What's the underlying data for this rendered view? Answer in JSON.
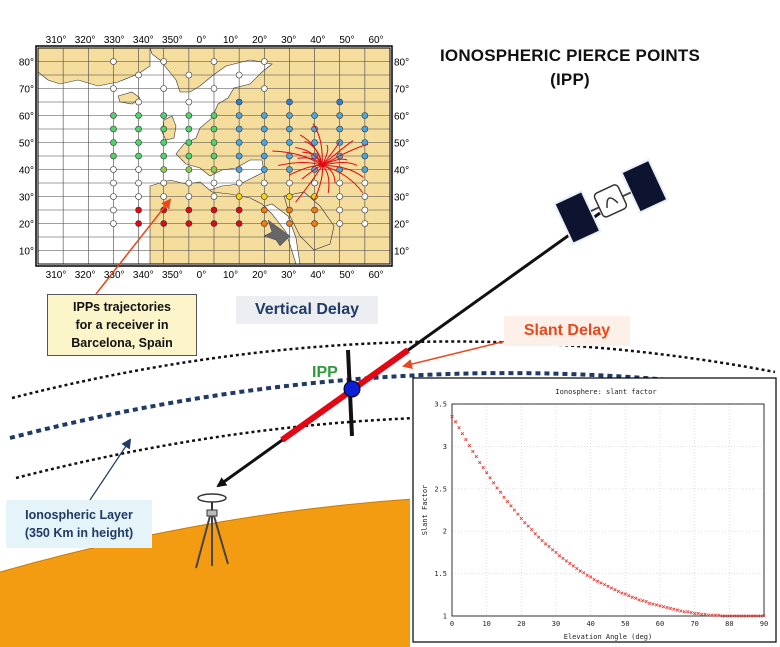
{
  "title": {
    "line1": "IONOSPHERIC PIERCE POINTS",
    "line2": "(IPP)"
  },
  "labels": {
    "vertical_delay": "Vertical Delay",
    "slant_delay": "Slant Delay",
    "ipp": "IPP",
    "ipps_callout": [
      "IPPs trajectories",
      "for a receiver in",
      "Barcelona, Spain"
    ],
    "ionospheric_layer": [
      "Ionospheric Layer",
      "(350 Km in height)"
    ]
  },
  "map": {
    "top_ticks": [
      "310°",
      "320°",
      "330°",
      "340°",
      "350°",
      "0°",
      "10°",
      "20°",
      "30°",
      "40°",
      "50°",
      "60°"
    ],
    "bottom_ticks": [
      "310°",
      "320°",
      "330°",
      "340°",
      "350°",
      "0°",
      "10°",
      "20°",
      "30°",
      "40°",
      "50°",
      "60°"
    ],
    "lat_ticks": [
      "80°",
      "70°",
      "60°",
      "50°",
      "40°",
      "30°",
      "20°",
      "10°"
    ]
  },
  "colors": {
    "ipp_red": "#e30613",
    "slant_orange": "#e8481b",
    "vertical_blue": "#1f3a66",
    "ipp_green": "#2e9b3a",
    "land": "#f5dd9e",
    "earth": "#f39c12",
    "plot_marker": "#e3342f"
  },
  "chart_data": {
    "type": "scatter",
    "title": "Ionosphere: slant factor",
    "xlabel": "Elevation Angle (deg)",
    "ylabel": "Slant Factor",
    "xlim": [
      0,
      90
    ],
    "ylim": [
      1,
      3.5
    ],
    "xticks": [
      "0",
      "10",
      "20",
      "30",
      "40",
      "50",
      "60",
      "70",
      "80",
      "90"
    ],
    "yticks": [
      "1",
      "1.5",
      "2",
      "2.5",
      "3",
      "3.5"
    ],
    "grid": true,
    "series": [
      {
        "x": [
          0,
          1,
          2,
          3,
          4,
          5,
          6,
          7,
          8,
          9,
          10,
          11,
          12,
          13,
          14,
          15,
          16,
          17,
          18,
          19,
          20,
          21,
          22,
          23,
          24,
          25,
          26,
          27,
          28,
          29,
          30,
          31,
          32,
          33,
          34,
          35,
          36,
          37,
          38,
          39,
          40,
          41,
          42,
          43,
          44,
          45,
          46,
          47,
          48,
          49,
          50,
          51,
          52,
          53,
          54,
          55,
          56,
          57,
          58,
          59,
          60,
          61,
          62,
          63,
          64,
          65,
          66,
          67,
          68,
          69,
          70,
          71,
          72,
          73,
          74,
          75,
          76,
          77,
          78,
          79,
          80,
          81,
          82,
          83,
          84,
          85,
          86,
          87,
          88,
          89,
          90
        ],
        "y": [
          3.35,
          3.29,
          3.22,
          3.15,
          3.08,
          3.01,
          2.94,
          2.88,
          2.81,
          2.75,
          2.69,
          2.63,
          2.57,
          2.51,
          2.46,
          2.4,
          2.35,
          2.3,
          2.25,
          2.2,
          2.15,
          2.1,
          2.06,
          2.02,
          1.97,
          1.93,
          1.89,
          1.85,
          1.82,
          1.78,
          1.75,
          1.71,
          1.68,
          1.65,
          1.62,
          1.59,
          1.56,
          1.53,
          1.51,
          1.48,
          1.46,
          1.43,
          1.41,
          1.39,
          1.37,
          1.35,
          1.33,
          1.31,
          1.29,
          1.27,
          1.26,
          1.24,
          1.22,
          1.21,
          1.19,
          1.18,
          1.17,
          1.15,
          1.14,
          1.13,
          1.12,
          1.11,
          1.1,
          1.09,
          1.08,
          1.07,
          1.06,
          1.05,
          1.05,
          1.04,
          1.03,
          1.03,
          1.02,
          1.02,
          1.01,
          1.01,
          1.01,
          1.01,
          1.0,
          1.0,
          1.0,
          1.0,
          1.0,
          1.0,
          1.0,
          1.0,
          1.0,
          1.0,
          1.0,
          1.0,
          1.0
        ]
      }
    ]
  }
}
